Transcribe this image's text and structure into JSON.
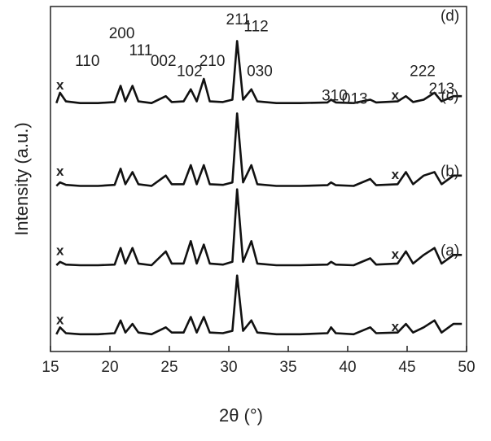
{
  "chart_data": {
    "type": "line",
    "xlabel": "2θ (°)",
    "ylabel": "Intensity (a.u.)",
    "xlim": [
      15,
      50
    ],
    "xticks": [
      15,
      20,
      25,
      30,
      35,
      40,
      45,
      50
    ],
    "ylim": [
      0,
      100
    ],
    "x": [
      15.5,
      15.8,
      16.3,
      17.5,
      19,
      20.4,
      20.9,
      21.3,
      21.9,
      22.4,
      23.5,
      24.7,
      25.2,
      26.2,
      26.8,
      27.3,
      27.9,
      28.4,
      29.5,
      30.3,
      30.7,
      31.2,
      31.9,
      32.4,
      34,
      36,
      38.3,
      38.6,
      39,
      40.5,
      41.9,
      42.4,
      44.2,
      44.9,
      45.5,
      46.4,
      47.3,
      47.9,
      48.9,
      49.6
    ],
    "series": [
      {
        "name": "(d)",
        "color": "#111111",
        "values": [
          72,
          75,
          72.5,
          72,
          72,
          72.3,
          77,
          72.5,
          77,
          72.5,
          72,
          74,
          72.3,
          72.5,
          76,
          72.5,
          79,
          72.5,
          72.3,
          73,
          90,
          73,
          76,
          72.5,
          72,
          72,
          72.2,
          73,
          72.2,
          72,
          73,
          72.2,
          72.5,
          74,
          72.3,
          73,
          75,
          72.5,
          74,
          74
        ]
      },
      {
        "name": "(c)",
        "color": "#111111",
        "values": [
          48,
          49,
          48.3,
          48,
          48,
          48.3,
          53,
          48.5,
          52,
          48.5,
          48,
          51,
          48.5,
          48.5,
          54,
          48.5,
          54,
          48.5,
          48.3,
          49,
          69,
          49,
          54,
          48.5,
          48,
          48,
          48.2,
          49,
          48.2,
          48,
          50,
          48.2,
          48.5,
          52,
          48.5,
          51,
          52,
          48.5,
          51,
          51
        ]
      },
      {
        "name": "(b)",
        "color": "#111111",
        "values": [
          25,
          26,
          25.2,
          25,
          25,
          25.2,
          30,
          25.5,
          30,
          25.5,
          25,
          29,
          25.5,
          25.5,
          32,
          25.5,
          31,
          25.5,
          25.2,
          26,
          47,
          26,
          32,
          25.5,
          25,
          25,
          25.2,
          26,
          25.2,
          25,
          27,
          25.2,
          25.5,
          29,
          25.5,
          28,
          30,
          25.5,
          28,
          28
        ]
      },
      {
        "name": "(a)",
        "color": "#111111",
        "values": [
          5,
          7,
          5.3,
          5,
          5,
          5.3,
          9,
          5.5,
          8,
          5.5,
          5,
          7,
          5.5,
          5.5,
          10,
          5.5,
          10,
          5.5,
          5.3,
          6,
          22,
          6,
          9,
          5.5,
          5,
          5,
          5.3,
          7,
          5.3,
          5,
          7,
          5.3,
          5.5,
          8,
          5.5,
          7,
          9,
          5.5,
          8,
          8
        ]
      }
    ],
    "annotations": [
      {
        "text": "(d)",
        "x": 48.6,
        "y": 97
      },
      {
        "text": "(c)",
        "x": 48.6,
        "y": 74
      },
      {
        "text": "(b)",
        "x": 48.6,
        "y": 52
      },
      {
        "text": "(a)",
        "x": 48.6,
        "y": 29
      },
      {
        "text": "110",
        "x": 18.1,
        "y": 84
      },
      {
        "text": "200",
        "x": 21.0,
        "y": 92
      },
      {
        "text": "111",
        "x": 22.6,
        "y": 87
      },
      {
        "text": "002",
        "x": 24.5,
        "y": 84
      },
      {
        "text": "102",
        "x": 26.7,
        "y": 81
      },
      {
        "text": "210",
        "x": 28.6,
        "y": 84
      },
      {
        "text": "211",
        "x": 30.8,
        "y": 96
      },
      {
        "text": "112",
        "x": 32.3,
        "y": 94
      },
      {
        "text": "030",
        "x": 32.6,
        "y": 81
      },
      {
        "text": "310",
        "x": 38.9,
        "y": 74
      },
      {
        "text": "013",
        "x": 40.6,
        "y": 73
      },
      {
        "text": "222",
        "x": 46.3,
        "y": 81
      },
      {
        "text": "213",
        "x": 47.9,
        "y": 76
      },
      {
        "text": "x",
        "x": 15.8,
        "y": 77
      },
      {
        "text": "x",
        "x": 44.0,
        "y": 74
      },
      {
        "text": "x",
        "x": 15.8,
        "y": 52
      },
      {
        "text": "x",
        "x": 44.0,
        "y": 51
      },
      {
        "text": "x",
        "x": 15.8,
        "y": 29
      },
      {
        "text": "x",
        "x": 44.0,
        "y": 28
      },
      {
        "text": "x",
        "x": 15.8,
        "y": 9
      },
      {
        "text": "x",
        "x": 44.0,
        "y": 7
      }
    ]
  }
}
